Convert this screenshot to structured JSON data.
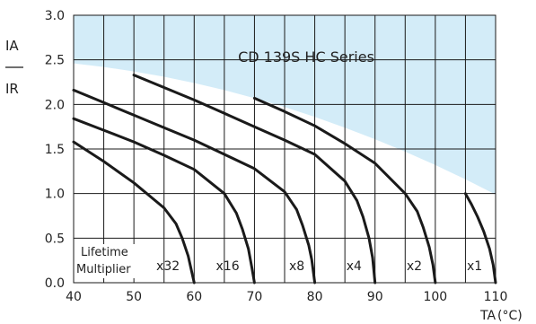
{
  "chart_data": {
    "type": "line",
    "title": "CD 139S HC Series",
    "xlabel": "TA",
    "xunit": "(°C)",
    "ylabel_top": "IA",
    "ylabel_bottom": "IR",
    "xlim": [
      40,
      110
    ],
    "ylim": [
      0,
      3.0
    ],
    "x_ticks": [
      "40",
      "50",
      "60",
      "70",
      "80",
      "90",
      "100",
      "110"
    ],
    "y_ticks": [
      "0.0",
      "0.5",
      "1.0",
      "1.5",
      "2.0",
      "2.5",
      "3.0"
    ],
    "grid": true,
    "region_label": "Lifetime\nMultiplier",
    "region_label_lines": [
      "Lifetime",
      "Multiplier"
    ],
    "envelope": {
      "fill": "#d3ecf8",
      "x": [
        40,
        45,
        50,
        55,
        60,
        65,
        70,
        75,
        80,
        85,
        90,
        95,
        100,
        105,
        110
      ],
      "y": [
        2.46,
        2.42,
        2.37,
        2.31,
        2.24,
        2.16,
        2.07,
        1.97,
        1.86,
        1.74,
        1.61,
        1.47,
        1.32,
        1.16,
        0.99
      ]
    },
    "series": [
      {
        "name": "x32",
        "x": [
          40,
          45,
          50,
          55,
          57,
          58,
          59,
          59.6,
          60
        ],
        "y": [
          1.58,
          1.36,
          1.12,
          0.84,
          0.66,
          0.5,
          0.3,
          0.12,
          0.0
        ]
      },
      {
        "name": "x16",
        "x": [
          40,
          45,
          50,
          55,
          60,
          65,
          67,
          68,
          69,
          69.6,
          70
        ],
        "y": [
          1.84,
          1.71,
          1.58,
          1.43,
          1.27,
          1.0,
          0.78,
          0.6,
          0.38,
          0.16,
          0.0
        ]
      },
      {
        "name": "x8",
        "x": [
          40,
          45,
          50,
          55,
          60,
          65,
          70,
          75,
          77,
          78,
          79,
          79.5,
          80
        ],
        "y": [
          2.16,
          2.02,
          1.88,
          1.74,
          1.6,
          1.44,
          1.28,
          1.02,
          0.82,
          0.64,
          0.42,
          0.26,
          0.0
        ]
      },
      {
        "name": "x4",
        "x": [
          50,
          55,
          60,
          65,
          70,
          75,
          80,
          85,
          87,
          88,
          89,
          89.6,
          90
        ],
        "y": [
          2.33,
          2.19,
          2.05,
          1.9,
          1.75,
          1.6,
          1.44,
          1.14,
          0.92,
          0.74,
          0.5,
          0.28,
          0.0
        ]
      },
      {
        "name": "x2",
        "x": [
          70,
          75,
          80,
          85,
          90,
          95,
          97,
          98,
          99,
          99.6,
          100
        ],
        "y": [
          2.07,
          1.92,
          1.76,
          1.56,
          1.34,
          1.0,
          0.8,
          0.62,
          0.4,
          0.2,
          0.0
        ]
      },
      {
        "name": "x1",
        "x": [
          105,
          106,
          107,
          108,
          109,
          109.6,
          110
        ],
        "y": [
          1.0,
          0.88,
          0.74,
          0.58,
          0.38,
          0.2,
          0.0
        ]
      }
    ],
    "series_label_x": [
      57.6,
      67.5,
      78.3,
      87.8,
      97.8,
      107.8
    ],
    "series_label_y": 0.18
  }
}
